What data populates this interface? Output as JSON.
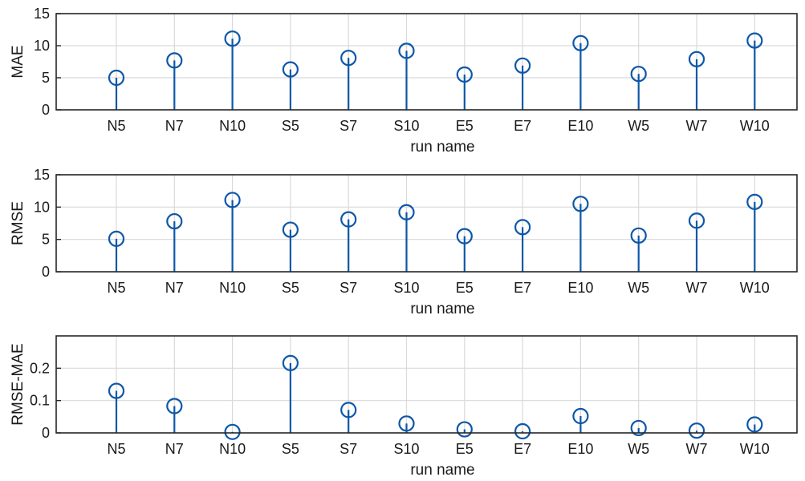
{
  "chart_data": [
    {
      "type": "stem",
      "xlabel": "run name",
      "ylabel": "MAE",
      "ylim": [
        0,
        15
      ],
      "yticks": [
        0,
        5,
        10,
        15
      ],
      "grid": true,
      "categories": [
        "N5",
        "N7",
        "N10",
        "S5",
        "S7",
        "S10",
        "E5",
        "E7",
        "E10",
        "W5",
        "W7",
        "W10"
      ],
      "values": [
        5.0,
        7.7,
        11.1,
        6.3,
        8.1,
        9.2,
        5.5,
        6.9,
        10.4,
        5.6,
        7.9,
        10.8
      ]
    },
    {
      "type": "stem",
      "xlabel": "run name",
      "ylabel": "RMSE",
      "ylim": [
        0,
        15
      ],
      "yticks": [
        0,
        5,
        10,
        15
      ],
      "grid": true,
      "categories": [
        "N5",
        "N7",
        "N10",
        "S5",
        "S7",
        "S10",
        "E5",
        "E7",
        "E10",
        "W5",
        "W7",
        "W10"
      ],
      "values": [
        5.1,
        7.8,
        11.1,
        6.5,
        8.1,
        9.2,
        5.5,
        6.9,
        10.5,
        5.6,
        7.9,
        10.8
      ]
    },
    {
      "type": "stem",
      "xlabel": "run name",
      "ylabel": "RMSE-MAE",
      "ylim": [
        0,
        0.3
      ],
      "yticks": [
        0,
        0.1,
        0.2
      ],
      "grid": true,
      "categories": [
        "N5",
        "N7",
        "N10",
        "S5",
        "S7",
        "S10",
        "E5",
        "E7",
        "E10",
        "W5",
        "W7",
        "W10"
      ],
      "values": [
        0.13,
        0.083,
        0.003,
        0.216,
        0.071,
        0.029,
        0.011,
        0.005,
        0.052,
        0.015,
        0.007,
        0.026
      ]
    }
  ],
  "colors": {
    "stem": "#0d57a8",
    "marker": "#0d57a8",
    "grid": "#d9d9d9",
    "axis": "#262626"
  }
}
